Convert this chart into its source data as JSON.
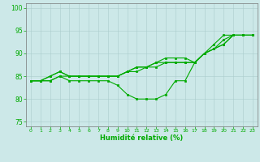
{
  "xlabel": "Humidité relative (%)",
  "xlim": [
    -0.5,
    23.5
  ],
  "ylim": [
    74,
    101
  ],
  "yticks": [
    75,
    80,
    85,
    90,
    95,
    100
  ],
  "xticks": [
    0,
    1,
    2,
    3,
    4,
    5,
    6,
    7,
    8,
    9,
    10,
    11,
    12,
    13,
    14,
    15,
    16,
    17,
    18,
    19,
    20,
    21,
    22,
    23
  ],
  "bg_color": "#cce8e8",
  "grid_color": "#aacccc",
  "line_color": "#00aa00",
  "line1_x": [
    0,
    1,
    2,
    3,
    4,
    5,
    6,
    7,
    8,
    9,
    10,
    11,
    12,
    13,
    14,
    15,
    16,
    17,
    18,
    19,
    20,
    21,
    22,
    23
  ],
  "line1_y": [
    84,
    84,
    84,
    85,
    84,
    84,
    84,
    84,
    84,
    83,
    81,
    80,
    80,
    80,
    81,
    84,
    84,
    88,
    90,
    92,
    94,
    94,
    94,
    94
  ],
  "line2_x": [
    0,
    1,
    2,
    3,
    4,
    5,
    6,
    7,
    8,
    9,
    10,
    11,
    12,
    13,
    14,
    15,
    16,
    17,
    18,
    19,
    20,
    21,
    22,
    23
  ],
  "line2_y": [
    84,
    84,
    84,
    85,
    85,
    85,
    85,
    85,
    85,
    85,
    86,
    86,
    87,
    87,
    88,
    88,
    88,
    88,
    90,
    91,
    92,
    94,
    94,
    94
  ],
  "line3_x": [
    0,
    1,
    2,
    3,
    4,
    5,
    6,
    7,
    8,
    9,
    10,
    11,
    12,
    13,
    14,
    15,
    16,
    17,
    18,
    19,
    20,
    21,
    22,
    23
  ],
  "line3_y": [
    84,
    84,
    85,
    86,
    85,
    85,
    85,
    85,
    85,
    85,
    86,
    87,
    87,
    88,
    88,
    88,
    88,
    88,
    90,
    91,
    92,
    94,
    94,
    94
  ],
  "line4_x": [
    0,
    1,
    2,
    3,
    4,
    5,
    6,
    7,
    8,
    9,
    10,
    11,
    12,
    13,
    14,
    15,
    16,
    17,
    18,
    19,
    20,
    21,
    22,
    23
  ],
  "line4_y": [
    84,
    84,
    85,
    86,
    85,
    85,
    85,
    85,
    85,
    85,
    86,
    87,
    87,
    88,
    89,
    89,
    89,
    88,
    90,
    91,
    93,
    94,
    94,
    94
  ]
}
